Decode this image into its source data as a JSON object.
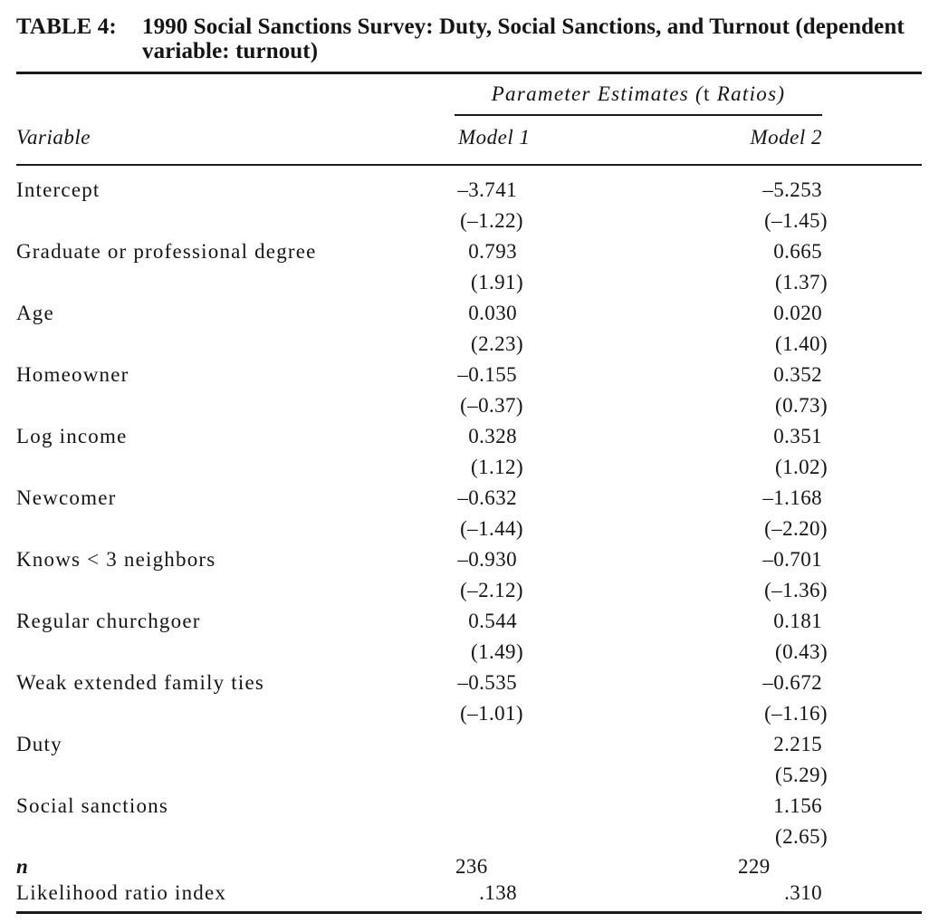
{
  "table": {
    "label": "TABLE 4:",
    "title_line1": "1990 Social Sanctions Survey: Duty, Social Sanctions, and Turnout (dependent",
    "title_line2": "variable: turnout)",
    "spanner": {
      "part1": "Parameter Estimates (",
      "part2": "t",
      "part3": " Ratios)"
    },
    "columns": {
      "variable": "Variable",
      "model1": "Model 1",
      "model2": "Model 2"
    },
    "rows": [
      {
        "variable": "Intercept",
        "model1": "–3.741",
        "model1_t": "(–1.22)",
        "model2": "–5.253",
        "model2_t": "(–1.45)"
      },
      {
        "variable": "Graduate or professional degree",
        "model1": "0.793",
        "model1_t": "(1.91)",
        "model2": "0.665",
        "model2_t": "(1.37)"
      },
      {
        "variable": "Age",
        "model1": "0.030",
        "model1_t": "(2.23)",
        "model2": "0.020",
        "model2_t": "(1.40)"
      },
      {
        "variable": "Homeowner",
        "model1": "–0.155",
        "model1_t": "(–0.37)",
        "model2": "0.352",
        "model2_t": "(0.73)"
      },
      {
        "variable": "Log income",
        "model1": "0.328",
        "model1_t": "(1.12)",
        "model2": "0.351",
        "model2_t": "(1.02)"
      },
      {
        "variable": "Newcomer",
        "model1": "–0.632",
        "model1_t": "(–1.44)",
        "model2": "–1.168",
        "model2_t": "(–2.20)"
      },
      {
        "variable": "Knows < 3 neighbors",
        "model1": "–0.930",
        "model1_t": "(–2.12)",
        "model2": "–0.701",
        "model2_t": "(–1.36)"
      },
      {
        "variable": "Regular churchgoer",
        "model1": "0.544",
        "model1_t": "(1.49)",
        "model2": "0.181",
        "model2_t": "(0.43)"
      },
      {
        "variable": "Weak extended family ties",
        "model1": "–0.535",
        "model1_t": "(–1.01)",
        "model2": "–0.672",
        "model2_t": "(–1.16)"
      },
      {
        "variable": "Duty",
        "model2": "2.215",
        "model2_t": "(5.29)"
      },
      {
        "variable": "Social sanctions",
        "model2": "1.156",
        "model2_t": "(2.65)"
      }
    ],
    "footer": {
      "sample_size": {
        "label": "n",
        "model1": "236",
        "model2": "229"
      },
      "likelihood_ratio_index": {
        "label": "Likelihood ratio index",
        "model1": ".138",
        "model2": ".310"
      }
    }
  }
}
